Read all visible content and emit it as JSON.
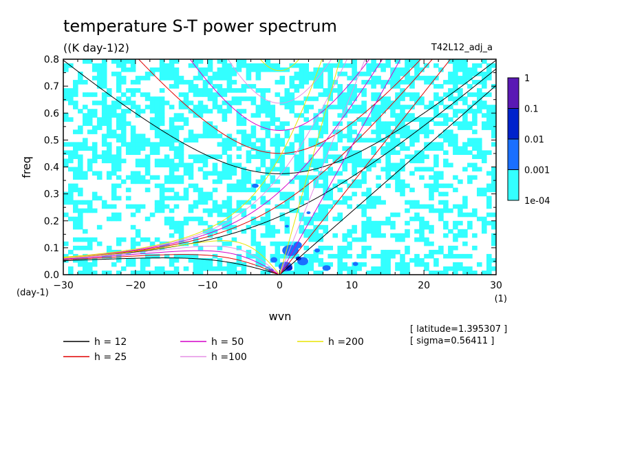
{
  "chart_data": {
    "type": "heatmap",
    "title": "temperature S-T power spectrum",
    "subtitle": "((K day-1)2)",
    "run_label": "T42L12_adj_a",
    "xlabel": "wvn",
    "ylabel": "freq",
    "x_unit": "(1)",
    "y_unit": "(day-1)",
    "xlim": [
      -30,
      30
    ],
    "ylim": [
      0,
      0.8
    ],
    "x_ticks": [
      -30,
      -20,
      -10,
      0,
      10,
      20,
      30
    ],
    "x_tick_labels": [
      "−30",
      "−20",
      "−10",
      "0",
      "10",
      "20",
      "30"
    ],
    "y_ticks": [
      0,
      0.1,
      0.2,
      0.3,
      0.4,
      0.5,
      0.6,
      0.7,
      0.8
    ],
    "y_tick_labels": [
      "0.0",
      "0.1",
      "0.2",
      "0.3",
      "0.4",
      "0.5",
      "0.6",
      "0.7",
      "0.8"
    ],
    "colorbar": {
      "levels": [
        "1e-04",
        "0.001",
        "0.01",
        "0.1",
        "1"
      ],
      "colors": [
        "#33ffff",
        "#1a6fff",
        "#0022cc",
        "#5a18b4"
      ]
    },
    "dispersion_curves": [
      {
        "label": "h = 12",
        "h": 12,
        "color": "#000000"
      },
      {
        "label": "h = 25",
        "h": 25,
        "color": "#e00000"
      },
      {
        "label": "h = 50",
        "h": 50,
        "color": "#d400c8"
      },
      {
        "label": "h =100",
        "h": 100,
        "color": "#e58fe6"
      },
      {
        "label": "h =200",
        "h": 200,
        "color": "#e8e400"
      }
    ],
    "annotations": {
      "latitude": "[ latitude=1.395307 ]",
      "sigma": "[ sigma=0.56411 ]"
    }
  }
}
